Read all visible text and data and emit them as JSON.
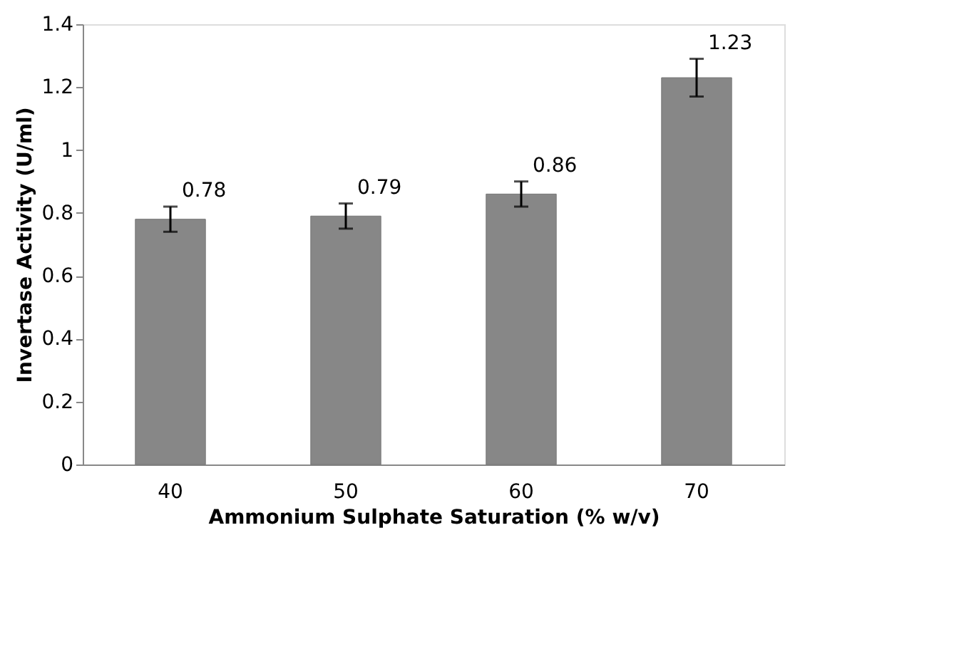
{
  "chart_data": {
    "type": "bar",
    "xlabel": "Ammonium Sulphate Saturation (% w/v)",
    "ylabel": "Invertase Activity (U/ml)",
    "categories": [
      "40",
      "50",
      "60",
      "70"
    ],
    "values": [
      0.78,
      0.79,
      0.86,
      1.23
    ],
    "errors": [
      0.04,
      0.04,
      0.04,
      0.06
    ],
    "color": "#878787",
    "ylim": [
      0,
      1.4
    ],
    "yticks": [
      0,
      0.2,
      0.4,
      0.6,
      0.8,
      1,
      1.2,
      1.4
    ],
    "data_labels": true,
    "grid": false
  }
}
